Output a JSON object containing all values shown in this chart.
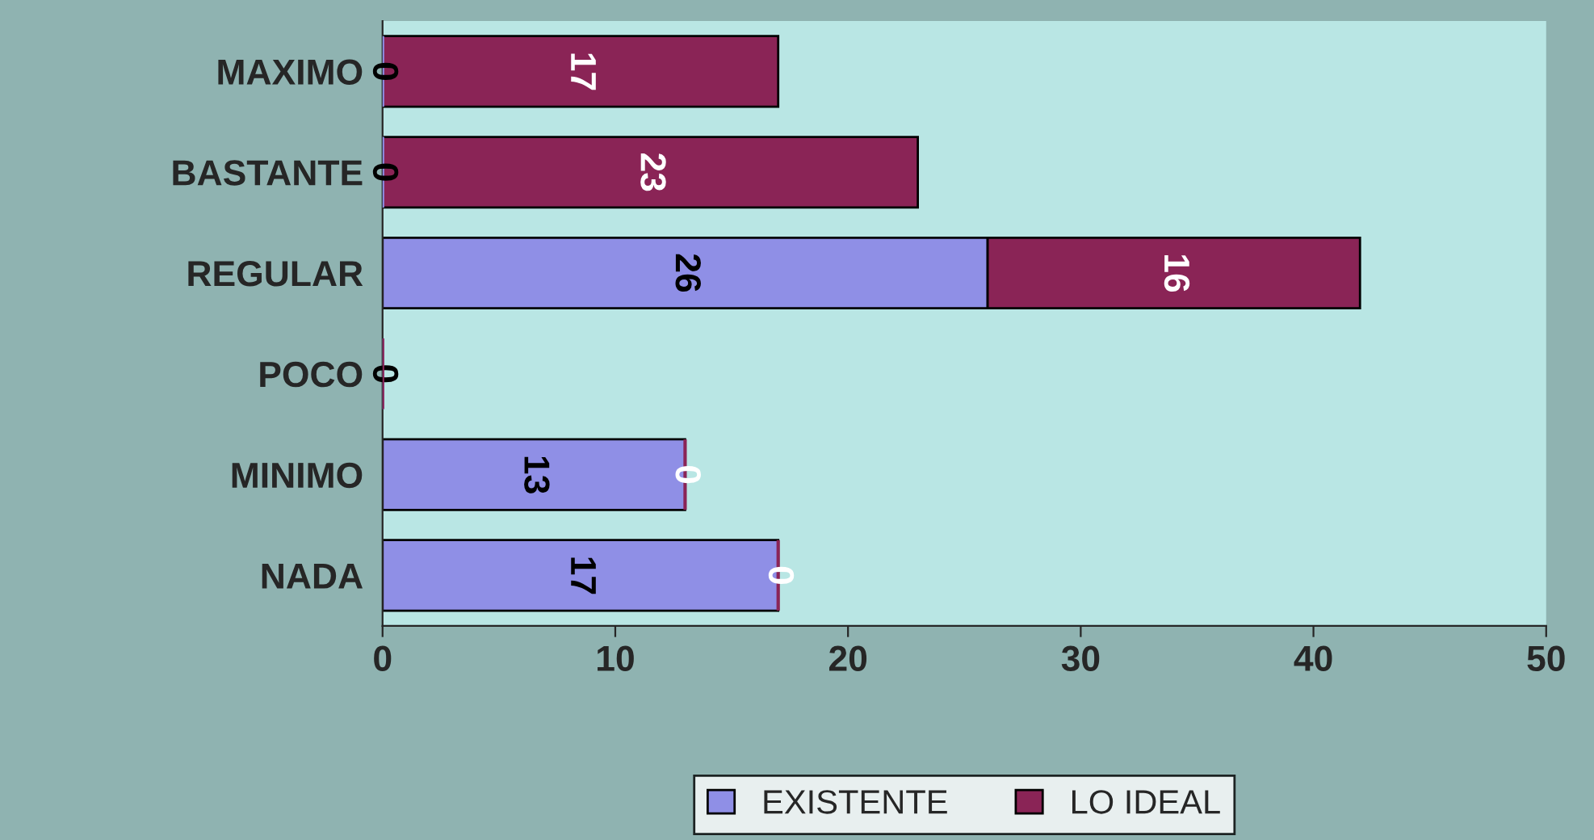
{
  "chart_data": {
    "type": "bar",
    "orientation": "horizontal",
    "stacked": true,
    "categories": [
      "MAXIMO",
      "BASTANTE",
      "REGULAR",
      "POCO",
      "MINIMO",
      "NADA"
    ],
    "series": [
      {
        "name": "EXISTENTE",
        "color": "#8f8fe6",
        "values": [
          0,
          0,
          26,
          0,
          13,
          17
        ],
        "value_labels": [
          "0",
          "0",
          "26",
          "0",
          "13",
          "17"
        ]
      },
      {
        "name": "LO IDEAL",
        "color": "#8a2456",
        "values": [
          17,
          23,
          16,
          0,
          0,
          0
        ],
        "value_labels": [
          "17",
          "23",
          "16",
          null,
          "0",
          "0"
        ]
      }
    ],
    "xlim": [
      0,
      50
    ],
    "xticks": [
      0,
      10,
      20,
      30,
      40,
      50
    ],
    "grid": false,
    "legend": "bottom"
  }
}
